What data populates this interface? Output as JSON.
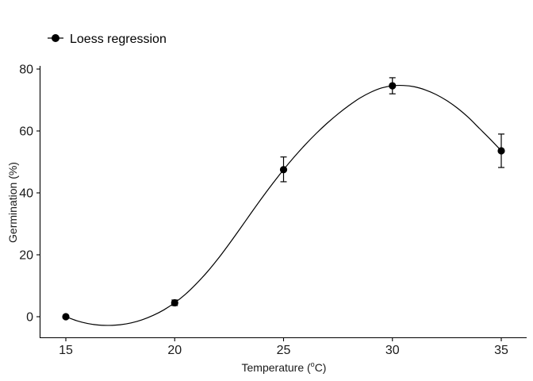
{
  "chart_data": {
    "type": "line",
    "title": "",
    "xlabel": "Temperature (°C)",
    "xlabel_main": "Temperature (",
    "xlabel_deg": "o",
    "xlabel_end": "C)",
    "ylabel": "Germination (%)",
    "xlim": [
      14.2,
      36.1
    ],
    "ylim": [
      -6.8,
      80.8
    ],
    "x_ticks": [
      15,
      20,
      25,
      30,
      35
    ],
    "x_tick_labels": [
      "15",
      "20",
      "25",
      "30",
      "35"
    ],
    "y_ticks": [
      0,
      20,
      40,
      60,
      80
    ],
    "y_tick_labels": [
      "0",
      "20",
      "40",
      "60",
      "80"
    ],
    "grid": false,
    "legend": {
      "position": "top-left",
      "entries": [
        "Loess regression"
      ]
    },
    "series": [
      {
        "name": "Loess regression",
        "points": [
          {
            "x": 15,
            "y": 0.0,
            "ymin": 0.0,
            "ymax": 0.0
          },
          {
            "x": 20,
            "y": 4.5,
            "ymin": 3.6,
            "ymax": 5.4
          },
          {
            "x": 25,
            "y": 47.5,
            "ymin": 43.6,
            "ymax": 51.6
          },
          {
            "x": 30,
            "y": 74.6,
            "ymin": 72.0,
            "ymax": 77.2
          },
          {
            "x": 35,
            "y": 53.6,
            "ymin": 48.2,
            "ymax": 59.0
          }
        ],
        "curve": [
          [
            15,
            0.0
          ],
          [
            15.5,
            -1.3
          ],
          [
            16,
            -2.2
          ],
          [
            16.5,
            -2.7
          ],
          [
            17,
            -2.8
          ],
          [
            17.5,
            -2.6
          ],
          [
            18,
            -2.0
          ],
          [
            18.5,
            -1.0
          ],
          [
            19,
            0.4
          ],
          [
            19.5,
            2.2
          ],
          [
            20,
            4.5
          ],
          [
            20.5,
            7.3
          ],
          [
            21,
            10.7
          ],
          [
            21.5,
            14.5
          ],
          [
            22,
            18.8
          ],
          [
            22.5,
            23.5
          ],
          [
            23,
            28.4
          ],
          [
            23.5,
            33.4
          ],
          [
            24,
            38.3
          ],
          [
            24.5,
            43.0
          ],
          [
            25,
            47.5
          ],
          [
            25.5,
            51.7
          ],
          [
            26,
            55.6
          ],
          [
            26.5,
            59.2
          ],
          [
            27,
            62.5
          ],
          [
            27.5,
            65.5
          ],
          [
            28,
            68.2
          ],
          [
            28.5,
            70.6
          ],
          [
            29,
            72.5
          ],
          [
            29.5,
            73.9
          ],
          [
            30,
            74.6
          ],
          [
            30.5,
            74.7
          ],
          [
            31,
            74.3
          ],
          [
            31.5,
            73.3
          ],
          [
            32,
            71.8
          ],
          [
            32.5,
            69.8
          ],
          [
            33,
            67.3
          ],
          [
            33.5,
            64.3
          ],
          [
            34,
            60.8
          ],
          [
            34.5,
            57.3
          ],
          [
            35,
            53.6
          ]
        ]
      }
    ]
  }
}
